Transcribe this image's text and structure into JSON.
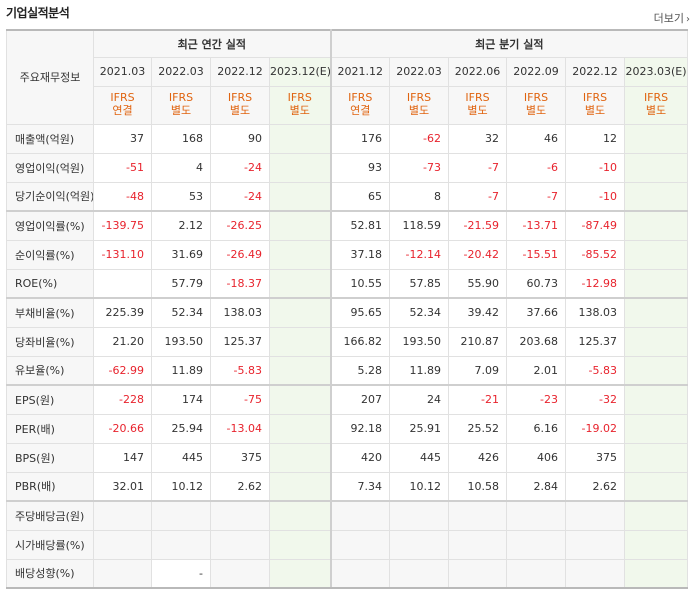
{
  "title": "기업실적분석",
  "more_label": "더보기",
  "header": {
    "row_label": "주요재무정보",
    "annual_group": "최근 연간 실적",
    "quarter_group": "최근 분기 실적",
    "periods": [
      "2021.03",
      "2022.03",
      "2022.12",
      "2023.12(E)",
      "2021.12",
      "2022.03",
      "2022.06",
      "2022.09",
      "2022.12",
      "2023.03(E)"
    ],
    "ifrs": [
      [
        "IFRS",
        "연결"
      ],
      [
        "IFRS",
        "별도"
      ],
      [
        "IFRS",
        "별도"
      ],
      [
        "IFRS",
        "별도"
      ],
      [
        "IFRS",
        "연결"
      ],
      [
        "IFRS",
        "별도"
      ],
      [
        "IFRS",
        "별도"
      ],
      [
        "IFRS",
        "별도"
      ],
      [
        "IFRS",
        "별도"
      ],
      [
        "IFRS",
        "별도"
      ]
    ]
  },
  "rows": [
    {
      "label": "매출액(억원)",
      "values": [
        "37",
        "168",
        "90",
        "",
        "176",
        "-62",
        "32",
        "46",
        "12",
        ""
      ]
    },
    {
      "label": "영업이익(억원)",
      "values": [
        "-51",
        "4",
        "-24",
        "",
        "93",
        "-73",
        "-7",
        "-6",
        "-10",
        ""
      ]
    },
    {
      "label": "당기순이익(억원)",
      "values": [
        "-48",
        "53",
        "-24",
        "",
        "65",
        "8",
        "-7",
        "-7",
        "-10",
        ""
      ]
    },
    {
      "label": "영업이익률(%)",
      "values": [
        "-139.75",
        "2.12",
        "-26.25",
        "",
        "52.81",
        "118.59",
        "-21.59",
        "-13.71",
        "-87.49",
        ""
      ]
    },
    {
      "label": "순이익률(%)",
      "values": [
        "-131.10",
        "31.69",
        "-26.49",
        "",
        "37.18",
        "-12.14",
        "-20.42",
        "-15.51",
        "-85.52",
        ""
      ]
    },
    {
      "label": "ROE(%)",
      "values": [
        "",
        "57.79",
        "-18.37",
        "",
        "10.55",
        "57.85",
        "55.90",
        "60.73",
        "-12.98",
        ""
      ]
    },
    {
      "label": "부채비율(%)",
      "values": [
        "225.39",
        "52.34",
        "138.03",
        "",
        "95.65",
        "52.34",
        "39.42",
        "37.66",
        "138.03",
        ""
      ]
    },
    {
      "label": "당좌비율(%)",
      "values": [
        "21.20",
        "193.50",
        "125.37",
        "",
        "166.82",
        "193.50",
        "210.87",
        "203.68",
        "125.37",
        ""
      ]
    },
    {
      "label": "유보율(%)",
      "values": [
        "-62.99",
        "11.89",
        "-5.83",
        "",
        "5.28",
        "11.89",
        "7.09",
        "2.01",
        "-5.83",
        ""
      ]
    },
    {
      "label": "EPS(원)",
      "values": [
        "-228",
        "174",
        "-75",
        "",
        "207",
        "24",
        "-21",
        "-23",
        "-32",
        ""
      ]
    },
    {
      "label": "PER(배)",
      "values": [
        "-20.66",
        "25.94",
        "-13.04",
        "",
        "92.18",
        "25.91",
        "25.52",
        "6.16",
        "-19.02",
        ""
      ]
    },
    {
      "label": "BPS(원)",
      "values": [
        "147",
        "445",
        "375",
        "",
        "420",
        "445",
        "426",
        "406",
        "375",
        ""
      ]
    },
    {
      "label": "PBR(배)",
      "values": [
        "32.01",
        "10.12",
        "2.62",
        "",
        "7.34",
        "10.12",
        "10.58",
        "2.84",
        "2.62",
        ""
      ]
    },
    {
      "label": "주당배당금(원)",
      "values": [
        "",
        "",
        "",
        "",
        "",
        "",
        "",
        "",
        "",
        ""
      ]
    },
    {
      "label": "시가배당률(%)",
      "values": [
        "",
        "",
        "",
        "",
        "",
        "",
        "",
        "",
        "",
        ""
      ]
    },
    {
      "label": "배당성향(%)",
      "values": [
        "",
        "-",
        "",
        "",
        "",
        "",
        "",
        "",
        "",
        ""
      ]
    }
  ]
}
